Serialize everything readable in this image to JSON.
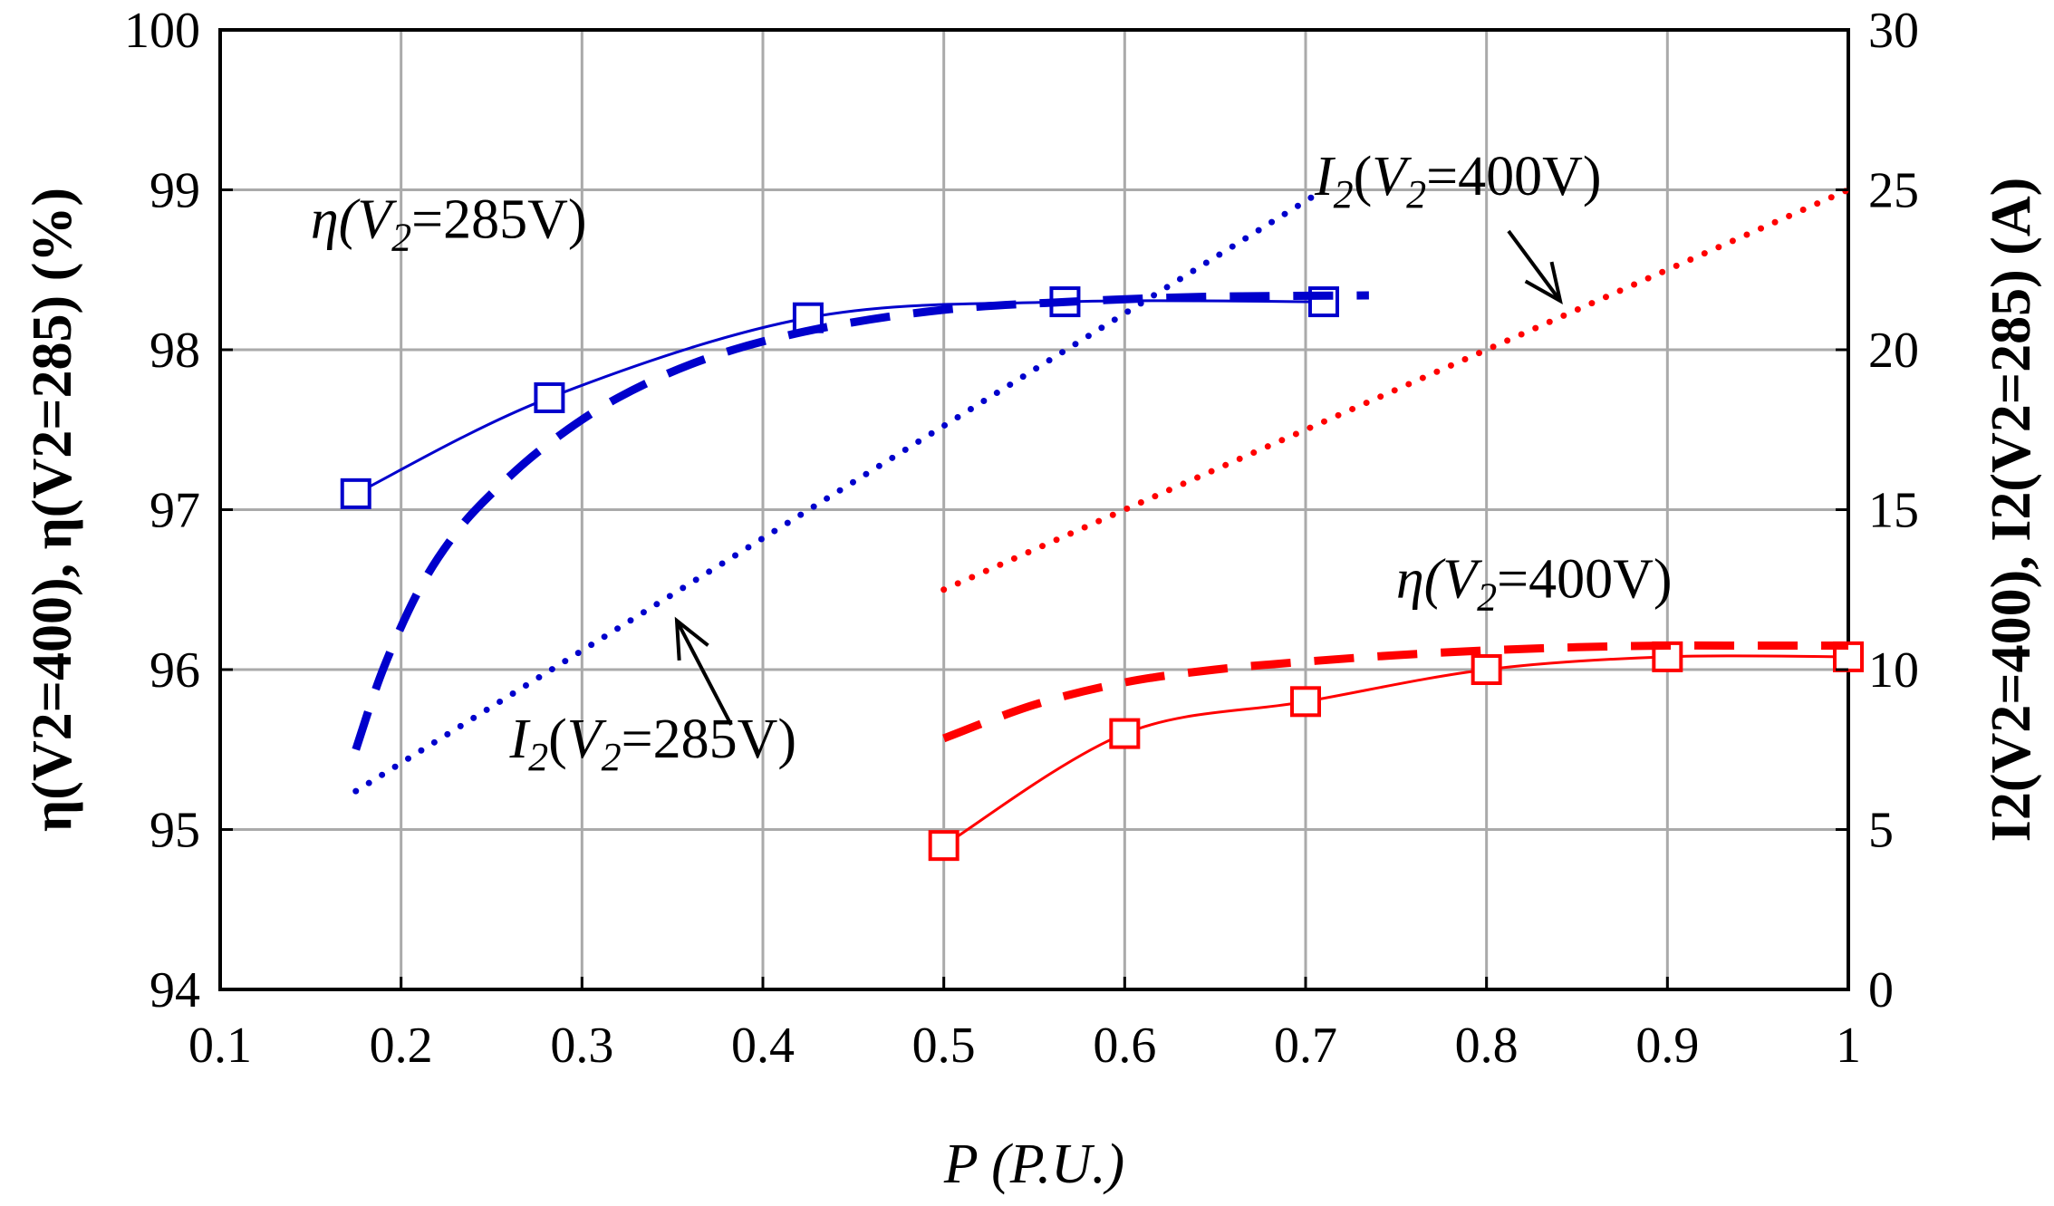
{
  "chart_data": {
    "type": "line",
    "title": "",
    "xlabel": "P (P.U.)",
    "ylabel_left": "η(V2=400), η(V2=285) (%)",
    "ylabel_right": "I2(V2=400), I2(V2=285) (A)",
    "xlim": [
      0.1,
      1.0
    ],
    "ylim_left": [
      94,
      100
    ],
    "ylim_right": [
      0,
      30
    ],
    "xticks": [
      0.1,
      0.2,
      0.3,
      0.4,
      0.5,
      0.6,
      0.7,
      0.8,
      0.9,
      1.0
    ],
    "xtick_labels": [
      "0.1",
      "0.2",
      "0.3",
      "0.4",
      "0.5",
      "0.6",
      "0.7",
      "0.8",
      "0.9",
      "1"
    ],
    "yticks_left": [
      94,
      95,
      96,
      97,
      98,
      99,
      100
    ],
    "yticks_right": [
      0,
      5,
      10,
      15,
      20,
      25,
      30
    ],
    "grid": true,
    "series": [
      {
        "name": "η(V2=285V) measured",
        "axis": "left",
        "color": "#0000cc",
        "style": "solid-markers",
        "marker": "square",
        "x": [
          0.175,
          0.282,
          0.425,
          0.567,
          0.71
        ],
        "y": [
          97.1,
          97.7,
          98.2,
          98.3,
          98.3
        ]
      },
      {
        "name": "η(V2=285V) calculated",
        "axis": "left",
        "color": "#0000cc",
        "style": "dashed",
        "x": [
          0.175,
          0.19,
          0.21,
          0.23,
          0.25,
          0.28,
          0.32,
          0.37,
          0.43,
          0.5,
          0.57,
          0.64,
          0.735
        ],
        "y": [
          95.5,
          96.0,
          96.5,
          96.85,
          97.1,
          97.4,
          97.7,
          97.95,
          98.13,
          98.25,
          98.3,
          98.33,
          98.34
        ]
      },
      {
        "name": "I2(V2=285V)",
        "axis": "right",
        "color": "#0000cc",
        "style": "dotted",
        "x": [
          0.175,
          0.71
        ],
        "y": [
          6.2,
          25
        ]
      },
      {
        "name": "η(V2=400V) measured",
        "axis": "left",
        "color": "#ff0000",
        "style": "solid-markers",
        "marker": "square",
        "x": [
          0.5,
          0.6,
          0.7,
          0.8,
          0.9,
          1.0
        ],
        "y": [
          94.9,
          95.6,
          95.8,
          96.0,
          96.08,
          96.08
        ]
      },
      {
        "name": "η(V2=400V) calculated",
        "axis": "left",
        "color": "#ff0000",
        "style": "dashed",
        "x": [
          0.5,
          0.55,
          0.6,
          0.65,
          0.7,
          0.75,
          0.8,
          0.85,
          0.9,
          0.95,
          1.0
        ],
        "y": [
          95.57,
          95.78,
          95.92,
          96.0,
          96.05,
          96.09,
          96.12,
          96.14,
          96.15,
          96.15,
          96.15
        ]
      },
      {
        "name": "I2(V2=400V)",
        "axis": "right",
        "color": "#ff0000",
        "style": "dotted",
        "x": [
          0.5,
          1.0
        ],
        "y": [
          12.5,
          25
        ]
      }
    ],
    "annotations": [
      {
        "id": "eta285",
        "sym": "η(",
        "sub_var": "V",
        "sub": "2",
        "rest": "=285V)",
        "x": 0.15,
        "y": 98.7
      },
      {
        "id": "i285",
        "sym": "I",
        "sub_sym": "2",
        "mid": "(",
        "sub_var": "V",
        "sub": "2",
        "rest": "=285V)",
        "x": 0.26,
        "y": 95.45
      },
      {
        "id": "i400",
        "sym": "I",
        "sub_sym": "2",
        "mid": "(",
        "sub_var": "V",
        "sub": "2",
        "rest": "=400V)",
        "x": 0.705,
        "y": 98.97
      },
      {
        "id": "eta400",
        "sym": "η(",
        "sub_var": "V",
        "sub": "2",
        "rest": "=400V)",
        "x": 0.75,
        "y": 96.45
      }
    ]
  }
}
